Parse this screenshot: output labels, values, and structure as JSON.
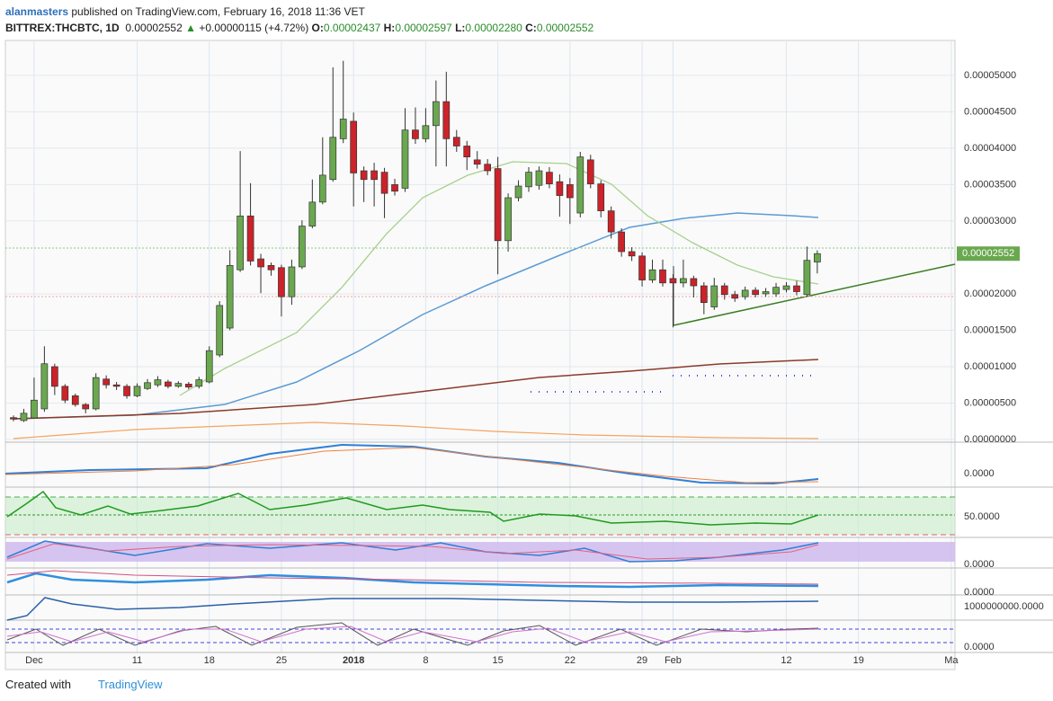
{
  "header": {
    "author": "alanmasters",
    "published": " published on TradingView.com, February 16, 2018 11:36 VET",
    "symbol": "BITTREX:THCBTC, 1D",
    "last": "0.00002552",
    "arrow": "▲",
    "change": "+0.00000115 (+4.72%)",
    "o_label": "O:",
    "o": "0.00002437",
    "h_label": "H:",
    "h": "0.00002597",
    "l_label": "L:",
    "l": "0.00002280",
    "c_label": "C:",
    "c": "0.00002552"
  },
  "footer": {
    "created": "Created with",
    "brand": "TradingView"
  },
  "indicator_labels": [
    "0.0000",
    "50.0000",
    "0.0000",
    "0.0000",
    "1000000000.0000",
    "0.0000"
  ],
  "chart_data": {
    "type": "candlestick",
    "up_color": "#6aa84f",
    "down_color": "#cc2229",
    "grid": true,
    "ylim": [
      0,
      5.48e-05
    ],
    "yticks": [
      {
        "value": 0,
        "label": "0.00000000"
      },
      {
        "value": 5e-06,
        "label": "0.00000500"
      },
      {
        "value": 1e-05,
        "label": "0.00001000"
      },
      {
        "value": 1.5e-05,
        "label": "0.00001500"
      },
      {
        "value": 2e-05,
        "label": "0.00002000"
      },
      {
        "value": 3e-05,
        "label": "0.00003000"
      },
      {
        "value": 3.5e-05,
        "label": "0.00003500"
      },
      {
        "value": 4e-05,
        "label": "0.00004000"
      },
      {
        "value": 4.5e-05,
        "label": "0.00004500"
      },
      {
        "value": 5e-05,
        "label": "0.00005000"
      }
    ],
    "xlim": [
      0,
      91
    ],
    "xticks": [
      {
        "value": 2,
        "label": "Dec"
      },
      {
        "value": 12,
        "label": "11"
      },
      {
        "value": 19,
        "label": "18"
      },
      {
        "value": 26,
        "label": "25"
      },
      {
        "value": 33,
        "label": "2018"
      },
      {
        "value": 40,
        "label": "8"
      },
      {
        "value": 47,
        "label": "15"
      },
      {
        "value": 54,
        "label": "22"
      },
      {
        "value": 61,
        "label": "29"
      },
      {
        "value": 64,
        "label": "Feb"
      },
      {
        "value": 75,
        "label": "12"
      },
      {
        "value": 82,
        "label": "19"
      },
      {
        "value": 91,
        "label": "Ma"
      }
    ],
    "open": [
      3e-06,
      2.6e-06,
      2.96e-06,
      4.2e-06,
      1e-05,
      7.3e-06,
      6e-06,
      4.8e-06,
      4.2e-06,
      8.3e-06,
      7.5e-06,
      7.3e-06,
      6e-06,
      7e-06,
      7.5e-06,
      7.9e-06,
      7.3e-06,
      7.6e-06,
      7.3e-06,
      7.9e-06,
      1.16e-05,
      1.53e-05,
      2.33e-05,
      3.07e-05,
      2.48e-05,
      2.39e-05,
      2.36e-05,
      1.96e-05,
      2.37e-05,
      2.93e-05,
      3.26e-05,
      3.57e-05,
      4.13e-05,
      4.37e-05,
      3.69e-05,
      3.69e-05,
      3.67e-05,
      3.5e-05,
      3.45e-05,
      4.25e-05,
      4.13e-05,
      4.31e-05,
      4.64e-05,
      4.15e-05,
      4.03e-05,
      3.84e-05,
      3.78e-05,
      3.72e-05,
      2.73e-05,
      3.32e-05,
      3.47e-05,
      3.49e-05,
      3.67e-05,
      3.54e-05,
      3.5e-05,
      3.11e-05,
      3.84e-05,
      3.51e-05,
      3.14e-05,
      2.85e-05,
      2.58e-05,
      2.52e-05,
      2.19e-05,
      2.33e-05,
      2.21e-05,
      2.15e-05,
      2.21e-05,
      2.11e-05,
      1.82e-05,
      2.11e-05,
      1.99e-05,
      1.96e-05,
      2.05e-05,
      2e-05,
      2e-05,
      2.06e-05,
      2.11e-05,
      1.99e-05,
      2.437e-05
    ],
    "high": [
      3.3e-06,
      4.2e-06,
      8.5e-06,
      1.28e-05,
      1.04e-05,
      7.6e-06,
      6.3e-06,
      5e-06,
      9.1e-06,
      8.8e-06,
      7.9e-06,
      7.6e-06,
      7.7e-06,
      8.3e-06,
      8.7e-06,
      8.2e-06,
      8e-06,
      7.9e-06,
      8.6e-06,
      1.28e-05,
      1.9e-05,
      2.6e-05,
      3.96e-05,
      3.52e-05,
      2.55e-05,
      2.43e-05,
      2.4e-05,
      2.47e-05,
      3.01e-05,
      3.57e-05,
      4.15e-05,
      5.11e-05,
      5.2e-05,
      4.49e-05,
      3.75e-05,
      3.8e-05,
      3.73e-05,
      3.58e-05,
      4.55e-05,
      4.56e-05,
      4.55e-05,
      4.93e-05,
      5.05e-05,
      4.25e-05,
      4.1e-05,
      3.96e-05,
      3.85e-05,
      3.88e-05,
      3.38e-05,
      3.56e-05,
      3.74e-05,
      3.75e-05,
      3.74e-05,
      3.64e-05,
      3.59e-05,
      3.95e-05,
      3.91e-05,
      3.56e-05,
      3.2e-05,
      2.9e-05,
      2.64e-05,
      2.57e-05,
      2.47e-05,
      2.47e-05,
      2.27e-05,
      2.47e-05,
      2.25e-05,
      2.16e-05,
      2.22e-05,
      2.15e-05,
      2.04e-05,
      2.1e-05,
      2.09e-05,
      2.08e-05,
      2.15e-05,
      2.16e-05,
      2.18e-05,
      2.65e-05,
      2.597e-05
    ],
    "low": [
      2.5e-06,
      2.4e-06,
      2.9e-06,
      3.8e-06,
      6.1e-06,
      5e-06,
      4.5e-06,
      3.6e-06,
      4e-06,
      7e-06,
      6.8e-06,
      5.6e-06,
      5.8e-06,
      6.8e-06,
      7.2e-06,
      7e-06,
      7.1e-06,
      6.9e-06,
      7e-06,
      7.7e-06,
      1.13e-05,
      1.5e-05,
      2.3e-05,
      2.39e-05,
      2.01e-05,
      2.25e-05,
      1.69e-05,
      1.85e-05,
      2.34e-05,
      2.9e-05,
      3.23e-05,
      3.54e-05,
      4.07e-05,
      3.2e-05,
      3.26e-05,
      3.2e-05,
      3.04e-05,
      3.35e-05,
      3.4e-05,
      4.06e-05,
      4.08e-05,
      3.75e-05,
      3.75e-05,
      3.95e-05,
      3.7e-05,
      3.72e-05,
      3.63e-05,
      2.27e-05,
      2.58e-05,
      3.27e-05,
      3.4e-05,
      3.43e-05,
      3.45e-05,
      3.06e-05,
      2.96e-05,
      3.05e-05,
      3.45e-05,
      3.05e-05,
      2.76e-05,
      2.51e-05,
      2.45e-05,
      2.1e-05,
      2.15e-05,
      2.1e-05,
      1.54e-05,
      2.09e-05,
      1.95e-05,
      1.72e-05,
      1.78e-05,
      1.92e-05,
      1.89e-05,
      1.92e-05,
      1.95e-05,
      1.96e-05,
      1.96e-05,
      2.02e-05,
      1.98e-05,
      1.96e-05,
      2.28e-05
    ],
    "close": [
      2.8e-06,
      3.6e-06,
      5.4e-06,
      1.04e-05,
      7.3e-06,
      5.4e-06,
      4.8e-06,
      4.2e-06,
      8.5e-06,
      7.5e-06,
      7.3e-06,
      6e-06,
      7.3e-06,
      7.8e-06,
      8.2e-06,
      7.3e-06,
      7.7e-06,
      7.2e-06,
      8.2e-06,
      1.22e-05,
      1.84e-05,
      2.39e-05,
      3.07e-05,
      2.45e-05,
      2.37e-05,
      2.33e-05,
      1.96e-05,
      2.37e-05,
      2.93e-05,
      3.26e-05,
      3.63e-05,
      4.15e-05,
      4.4e-05,
      3.66e-05,
      3.57e-05,
      3.57e-05,
      3.38e-05,
      3.41e-05,
      4.25e-05,
      4.13e-05,
      4.31e-05,
      4.64e-05,
      4.13e-05,
      4.03e-05,
      3.88e-05,
      3.78e-05,
      3.69e-05,
      2.73e-05,
      3.32e-05,
      3.48e-05,
      3.67e-05,
      3.69e-05,
      3.51e-05,
      3.35e-05,
      3.32e-05,
      3.88e-05,
      3.51e-05,
      3.14e-05,
      2.85e-05,
      2.58e-05,
      2.52e-05,
      2.19e-05,
      2.33e-05,
      2.15e-05,
      2.15e-05,
      2.21e-05,
      2.11e-05,
      1.88e-05,
      2.11e-05,
      1.99e-05,
      1.94e-05,
      2.05e-05,
      1.99e-05,
      2.03e-05,
      2.09e-05,
      2.11e-05,
      2.03e-05,
      2.46e-05,
      2.552e-05
    ]
  }
}
